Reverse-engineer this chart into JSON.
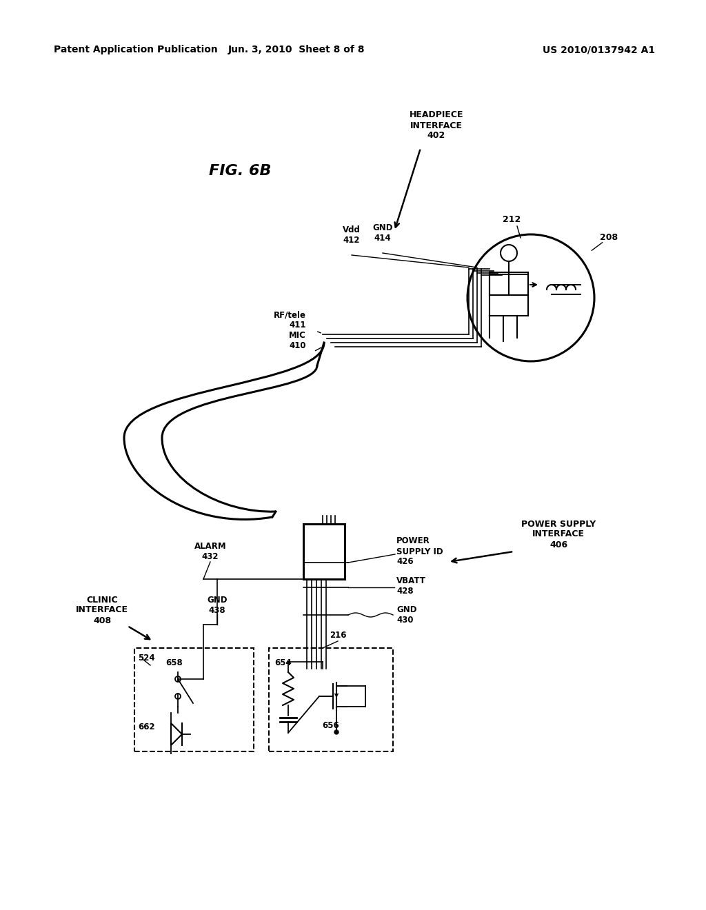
{
  "bg_color": "#ffffff",
  "header_left": "Patent Application Publication",
  "header_center": "Jun. 3, 2010  Sheet 8 of 8",
  "header_right": "US 2010/0137942 A1",
  "fig_label": "FIG. 6B",
  "header_fontsize": 10,
  "fig_fontsize": 16,
  "label_fontsize": 9,
  "small_fontsize": 8.5
}
